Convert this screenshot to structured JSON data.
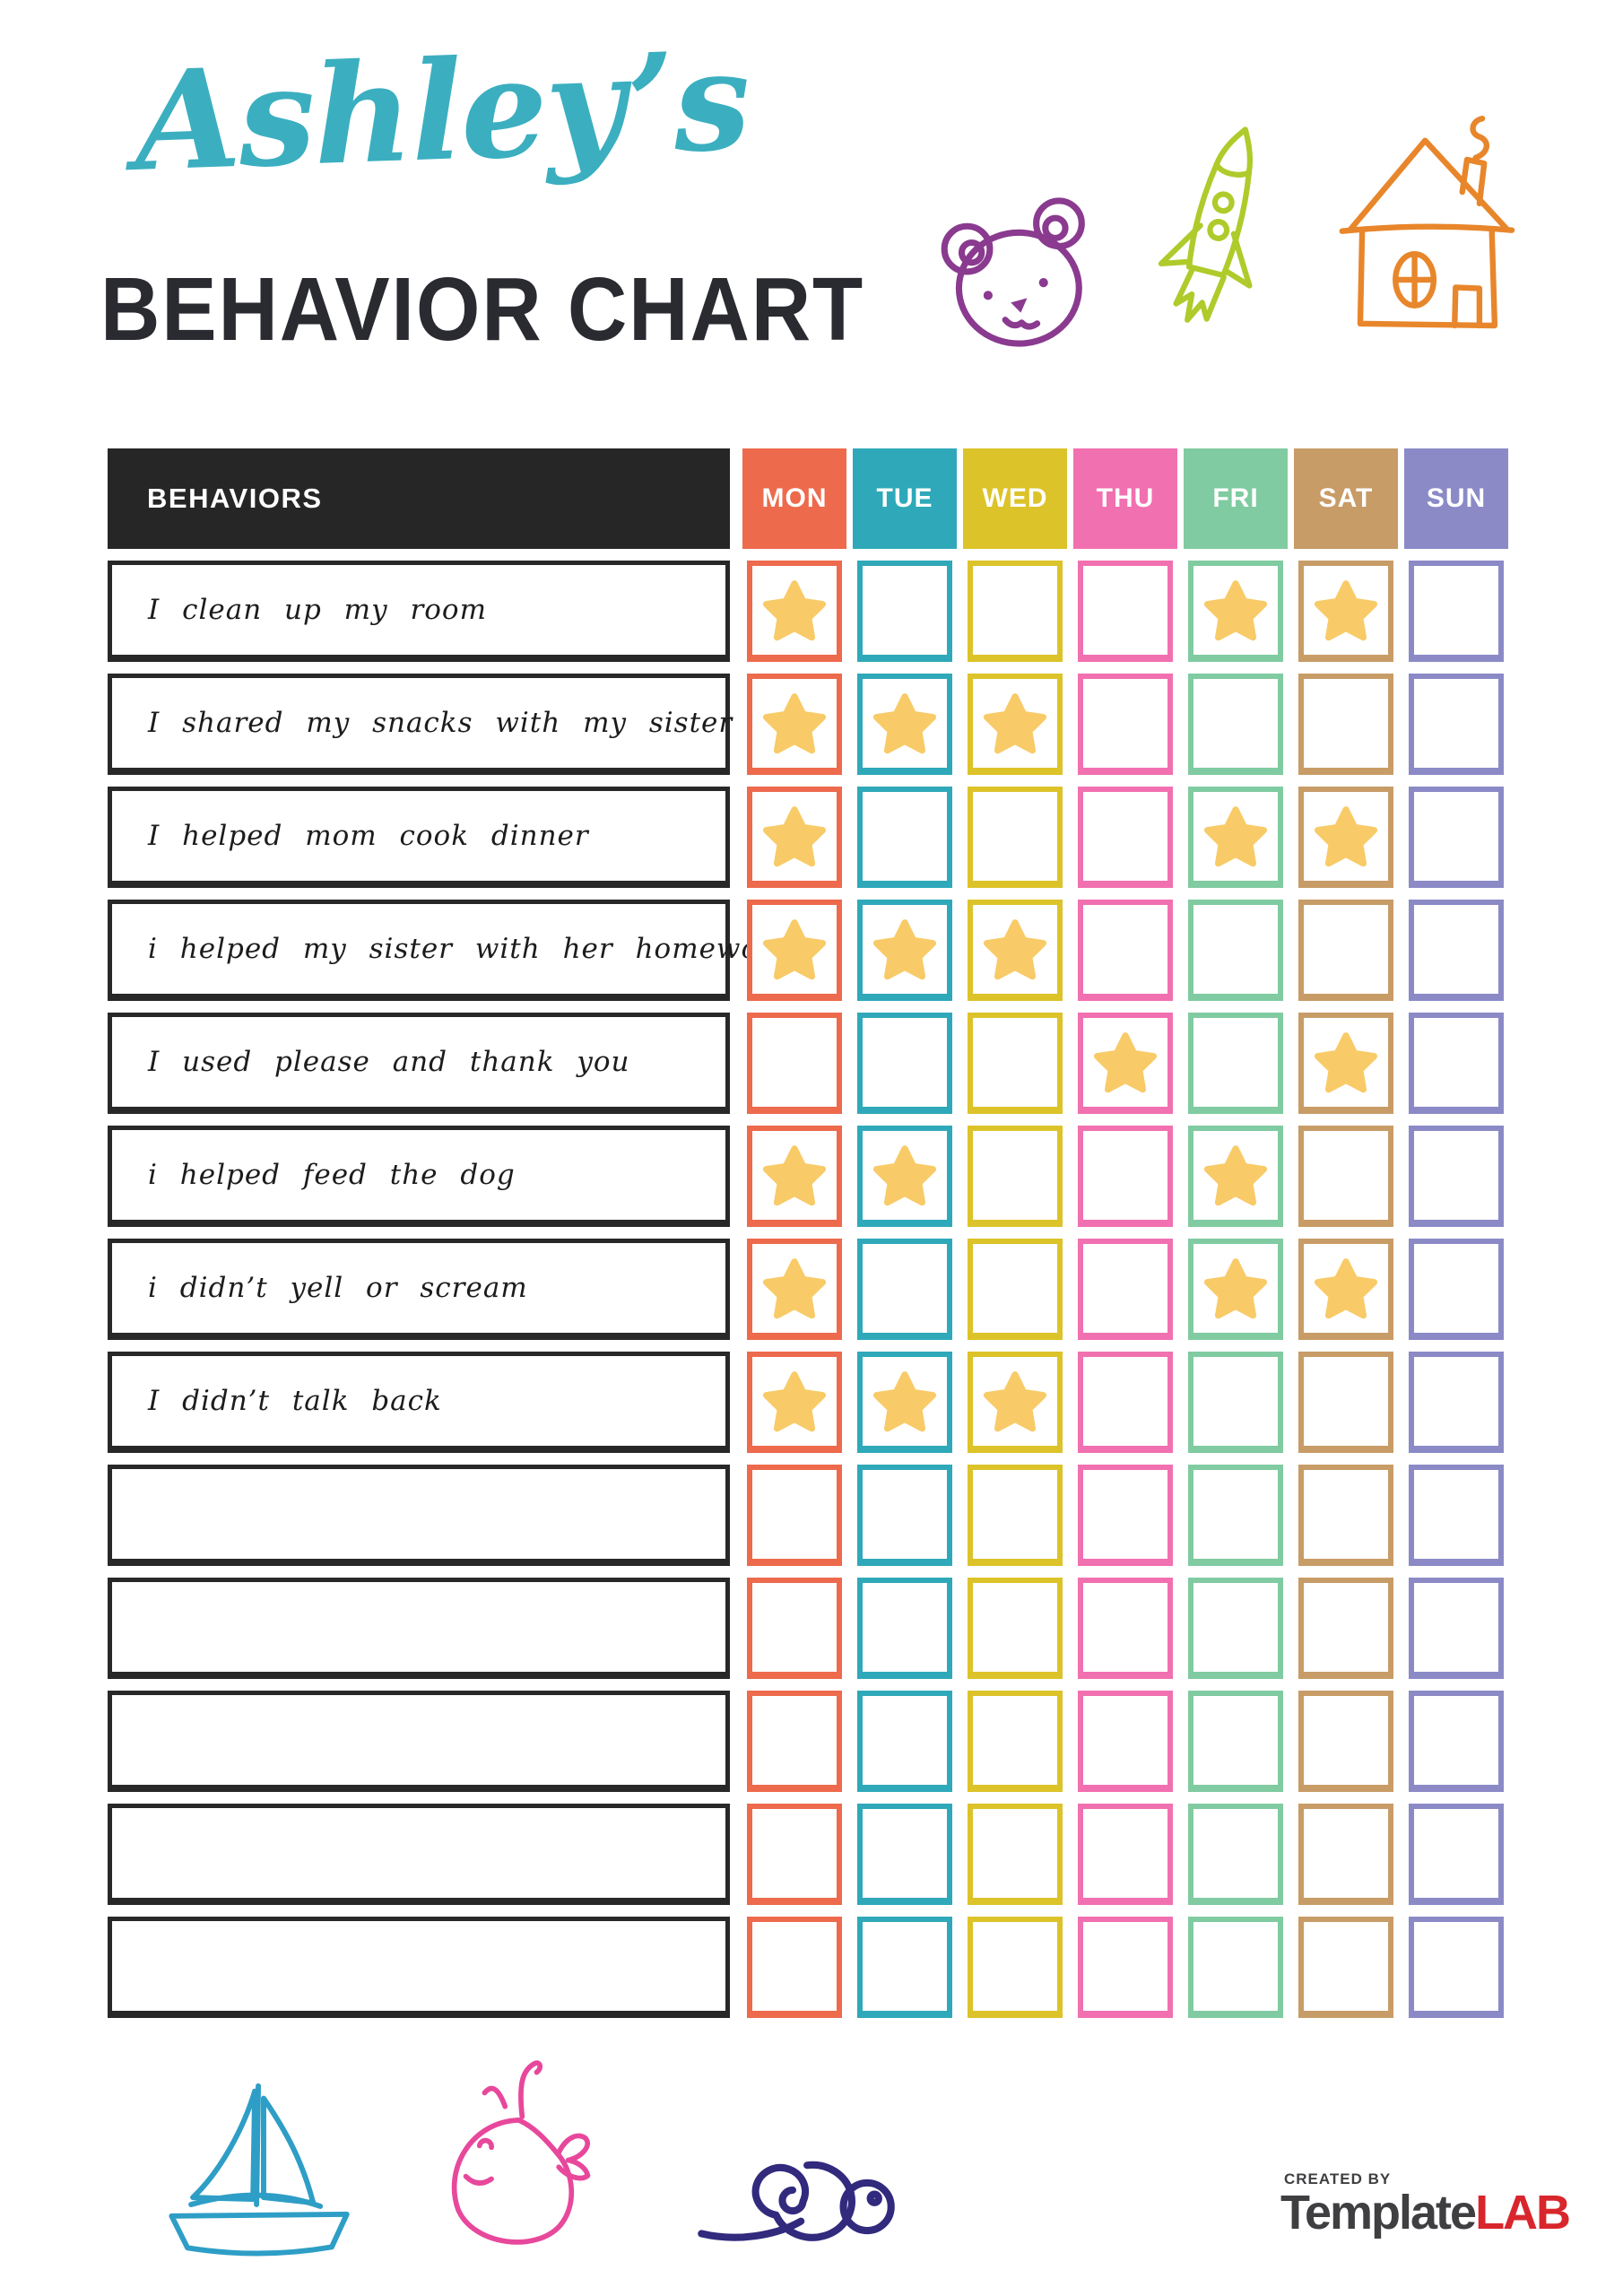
{
  "title": {
    "script_name": "Ashley’s",
    "heading": "BEHAVIOR CHART"
  },
  "header": {
    "behaviors_label": "BEHAVIORS",
    "behaviors_bg": "#262626",
    "days": [
      {
        "label": "MON",
        "color": "#ED6A4D"
      },
      {
        "label": "TUE",
        "color": "#2FA9B9"
      },
      {
        "label": "WED",
        "color": "#DCC32A"
      },
      {
        "label": "THU",
        "color": "#F170B0"
      },
      {
        "label": "FRI",
        "color": "#80CBA1"
      },
      {
        "label": "SAT",
        "color": "#C89C67"
      },
      {
        "label": "SUN",
        "color": "#8B8AC7"
      }
    ]
  },
  "rows": [
    {
      "behavior": "I clean up my room",
      "stars": [
        1,
        0,
        0,
        0,
        1,
        1,
        0
      ]
    },
    {
      "behavior": "I shared my snacks with my sister",
      "stars": [
        1,
        1,
        1,
        0,
        0,
        0,
        0
      ]
    },
    {
      "behavior": "I helped mom cook dinner",
      "stars": [
        1,
        0,
        0,
        0,
        1,
        1,
        0
      ]
    },
    {
      "behavior": "i helped my sister with her homework",
      "stars": [
        1,
        1,
        1,
        0,
        0,
        0,
        0
      ]
    },
    {
      "behavior": "I used please and thank you",
      "stars": [
        0,
        0,
        0,
        1,
        0,
        1,
        0
      ]
    },
    {
      "behavior": "i helped feed the dog",
      "stars": [
        1,
        1,
        0,
        0,
        1,
        0,
        0
      ]
    },
    {
      "behavior": "i didn’t yell or scream",
      "stars": [
        1,
        0,
        0,
        0,
        1,
        1,
        0
      ]
    },
    {
      "behavior": "I didn’t talk back",
      "stars": [
        1,
        1,
        1,
        0,
        0,
        0,
        0
      ]
    },
    {
      "behavior": "",
      "stars": [
        0,
        0,
        0,
        0,
        0,
        0,
        0
      ]
    },
    {
      "behavior": "",
      "stars": [
        0,
        0,
        0,
        0,
        0,
        0,
        0
      ]
    },
    {
      "behavior": "",
      "stars": [
        0,
        0,
        0,
        0,
        0,
        0,
        0
      ]
    },
    {
      "behavior": "",
      "stars": [
        0,
        0,
        0,
        0,
        0,
        0,
        0
      ]
    },
    {
      "behavior": "",
      "stars": [
        0,
        0,
        0,
        0,
        0,
        0,
        0
      ]
    }
  ],
  "star": {
    "color": "#F8CB68"
  },
  "colors": {
    "title_teal": "#3BAFC0",
    "ink": "#2A2A31",
    "bear": "#8A3A8F",
    "rocket": "#AECB2B",
    "house": "#E8862B",
    "boat": "#2E9EC6",
    "whale": "#E8489B",
    "snail": "#312A7D",
    "brand_gray": "#3F3F42",
    "brand_red": "#D8262C"
  },
  "footer": {
    "created_by": "CREATED BY",
    "brand_part1": "Template",
    "brand_part2": "LAB"
  }
}
